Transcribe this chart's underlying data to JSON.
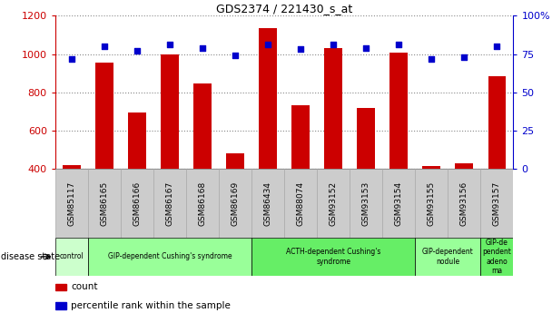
{
  "title": "GDS2374 / 221430_s_at",
  "samples": [
    "GSM85117",
    "GSM86165",
    "GSM86166",
    "GSM86167",
    "GSM86168",
    "GSM86169",
    "GSM86434",
    "GSM88074",
    "GSM93152",
    "GSM93153",
    "GSM93154",
    "GSM93155",
    "GSM93156",
    "GSM93157"
  ],
  "counts": [
    420,
    955,
    695,
    1000,
    845,
    480,
    1135,
    735,
    1030,
    720,
    1005,
    415,
    430,
    885
  ],
  "percentiles": [
    72,
    80,
    77,
    81,
    79,
    74,
    81,
    78,
    81,
    79,
    81,
    72,
    73,
    80
  ],
  "ylim_left": [
    400,
    1200
  ],
  "ylim_right": [
    0,
    100
  ],
  "yticks_left": [
    400,
    600,
    800,
    1000,
    1200
  ],
  "yticks_right": [
    0,
    25,
    50,
    75,
    100
  ],
  "bar_color": "#cc0000",
  "dot_color": "#0000cc",
  "bar_bottom": 400,
  "disease_groups": [
    {
      "label": "control",
      "start": 0,
      "end": 1,
      "color": "#ccffcc"
    },
    {
      "label": "GIP-dependent Cushing's syndrome",
      "start": 1,
      "end": 6,
      "color": "#99ff99"
    },
    {
      "label": "ACTH-dependent Cushing's\nsyndrome",
      "start": 6,
      "end": 11,
      "color": "#66ee66"
    },
    {
      "label": "GIP-dependent\nnodule",
      "start": 11,
      "end": 13,
      "color": "#99ff99"
    },
    {
      "label": "GIP-de\npendent\nadeno\nma",
      "start": 13,
      "end": 14,
      "color": "#66ee66"
    }
  ],
  "disease_state_label": "disease state",
  "legend_count_label": "count",
  "legend_percentile_label": "percentile rank within the sample",
  "left_axis_color": "#cc0000",
  "right_axis_color": "#0000cc",
  "grid_dotted_color": "#888888",
  "sample_box_color": "#cccccc",
  "sample_box_edge_color": "#aaaaaa"
}
